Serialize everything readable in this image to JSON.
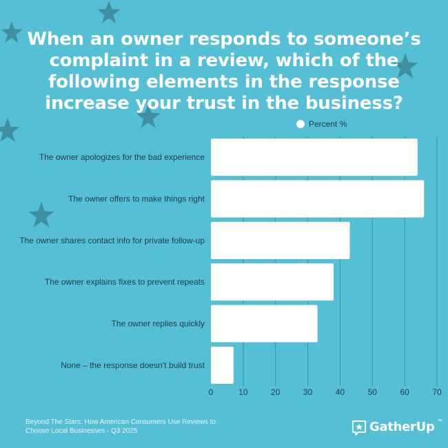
{
  "title": "When an owner responds to someone’s complaint in a review, which of the following elements in the response increase your trust in the business?",
  "legend": {
    "label": "Percent %"
  },
  "source": "Beyond The Stars: How American Consumers Use Reviews to Choose Local Businesses - Q3 2025",
  "brand": {
    "name": "GatherUp",
    "mark": "™"
  },
  "colors": {
    "background": "#55bfd6",
    "bar": "#ffffff",
    "star": "#3f8fa0",
    "text": "#1e3a48"
  },
  "chart_data": {
    "type": "bar",
    "orientation": "horizontal",
    "categories": [
      "The owner apologizes for the bad experience",
      "The owner offers to make things right",
      "The owner shares contact info for private follow-up",
      "The owner explains fixes to prevent repeats",
      "The owner replies quickly",
      "None – the response doesn’t build trust"
    ],
    "series": [
      {
        "name": "Percent %",
        "values": [
          64,
          66,
          43,
          38,
          33,
          7
        ]
      }
    ],
    "xlim": [
      0,
      70
    ],
    "xticks": [
      0,
      10,
      20,
      30,
      40,
      50,
      60,
      70
    ],
    "grid": true,
    "legend_position": "top-right"
  }
}
